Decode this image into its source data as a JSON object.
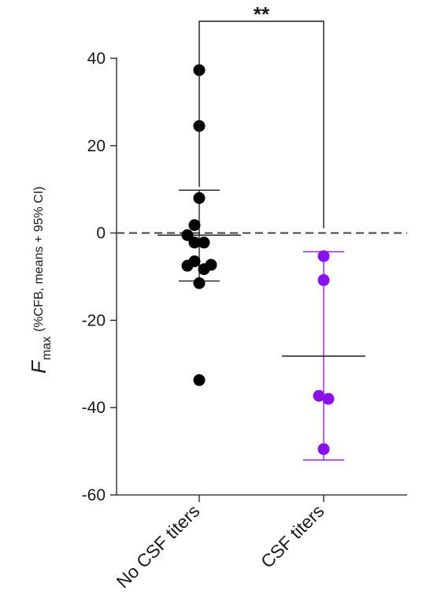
{
  "chart_data": {
    "type": "scatter",
    "ylabel": {
      "main": "F",
      "subscript": "max",
      "rest": "(%CFB, means + 95% CI)"
    },
    "ylim": [
      -60,
      45
    ],
    "yticks": [
      {
        "value": 40,
        "label": "40"
      },
      {
        "value": 20,
        "label": "20"
      },
      {
        "value": 0,
        "label": "0"
      },
      {
        "value": -20,
        "label": "-20"
      },
      {
        "value": -40,
        "label": "-40"
      },
      {
        "value": -60,
        "label": "-60"
      }
    ],
    "reference_line": {
      "y": 0,
      "style": "dashed"
    },
    "categories": [
      "No CSF titers",
      "CSF titers"
    ],
    "series": [
      {
        "category": "No CSF titers",
        "color": "#000000",
        "mean": -0.5,
        "ci": [
          -11,
          9.8
        ],
        "points": [
          {
            "y": 37.3,
            "jitter": 0
          },
          {
            "y": 24.5,
            "jitter": 0
          },
          {
            "y": 8,
            "jitter": 0
          },
          {
            "y": 1.8,
            "jitter": -0.4
          },
          {
            "y": -0.5,
            "jitter": -1
          },
          {
            "y": -2.2,
            "jitter": -0.4
          },
          {
            "y": -2.2,
            "jitter": 0.4
          },
          {
            "y": -6.5,
            "jitter": -0.4
          },
          {
            "y": -7.5,
            "jitter": -1
          },
          {
            "y": -7.3,
            "jitter": 1
          },
          {
            "y": -8.3,
            "jitter": 0.4
          },
          {
            "y": -11.5,
            "jitter": 0
          },
          {
            "y": -33.7,
            "jitter": 0
          }
        ]
      },
      {
        "category": "CSF titers",
        "color": "#8a10f0",
        "mean": -28.2,
        "ci": [
          -52,
          -4.3
        ],
        "points": [
          {
            "y": -5.3,
            "jitter": 0
          },
          {
            "y": -10.8,
            "jitter": 0
          },
          {
            "y": -37.3,
            "jitter": -0.4
          },
          {
            "y": -38,
            "jitter": 0.4
          },
          {
            "y": -49.5,
            "jitter": 0
          }
        ]
      }
    ],
    "significance": {
      "label": "**",
      "between": [
        "No CSF titers",
        "CSF titers"
      ]
    }
  }
}
